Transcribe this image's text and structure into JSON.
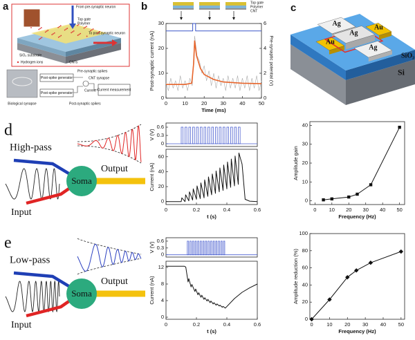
{
  "panel_labels": [
    "a",
    "b",
    "c",
    "d",
    "e"
  ],
  "panel_a": {
    "from": "From pre-synaptic neuron",
    "to": "To post-synaptic neuron",
    "top_gate": "Top gate",
    "polymer": "Polymer",
    "substrate": "SiO₂ substrate",
    "ions": "Hydrogen ions",
    "cnts": "CNTs",
    "bio": "Biological synapse",
    "pre_spikes": "Pre-synaptic spikes",
    "gen1": "Post-spike generator",
    "cnt_synapse": "CNT synapse",
    "current": "Current",
    "gen2": "Post-spike generator",
    "post_spikes": "Post-synaptic spikes",
    "measure": "Current measurement"
  },
  "panel_c": {
    "labels": [
      "Ag",
      "Ag",
      "Au",
      "Au",
      "Ag"
    ],
    "sio2": "SiO₂",
    "si": "Si"
  },
  "diagram_d": {
    "filter": "High-pass",
    "soma": "Soma",
    "input": "Input",
    "output": "Output"
  },
  "diagram_e": {
    "filter": "Low-pass",
    "soma": "Soma",
    "input": "Input",
    "output": "Output"
  },
  "chart_data": [
    {
      "type": "line",
      "xlabel": "Time (ms)",
      "ylabel": "Post-synaptic current (nA)",
      "y2label": "Pre-synaptic potential (V)",
      "xlim": [
        0,
        50
      ],
      "xticks": [
        0,
        10,
        20,
        30,
        40,
        50
      ],
      "ylim": [
        0,
        30
      ],
      "yticks": [
        0,
        10,
        20,
        30
      ],
      "y2lim": [
        0,
        6
      ],
      "y2ticks": [
        0,
        2,
        4,
        6
      ],
      "layer_legend": [
        {
          "label": "Top gate",
          "color": "#d9c034"
        },
        {
          "label": "Polymer",
          "color": "#7fb4d6"
        },
        {
          "label": "CNT",
          "color": "#222222"
        }
      ],
      "series": [
        {
          "color": "#aaaaaa",
          "x": [
            0,
            1.25,
            2.5,
            3.75,
            5,
            6.25,
            7.5,
            8.75,
            10,
            11.25,
            12.5,
            13.75,
            15,
            16.25,
            17.5,
            18.75,
            20,
            21.25,
            22.5,
            23.75,
            25,
            26.25,
            27.5,
            28.75,
            30,
            31.25,
            32.5,
            33.75,
            35,
            36.25,
            37.5,
            38.75,
            40,
            41.25,
            42.5,
            43.75,
            45,
            46.25,
            47.5,
            48.75,
            50
          ],
          "values": [
            6,
            3,
            8,
            4,
            7,
            3,
            9,
            4,
            7,
            3,
            8,
            5,
            25,
            17,
            15,
            10,
            13,
            7,
            11,
            5,
            10,
            4,
            9,
            5,
            8,
            3,
            9,
            4,
            8,
            4,
            9,
            3,
            8,
            4,
            9,
            3,
            8,
            4,
            9,
            3,
            7
          ]
        },
        {
          "color": "#e8642a",
          "x": [
            0,
            10,
            13.5,
            14.5,
            15,
            16,
            18,
            20,
            25,
            30,
            40,
            50
          ],
          "values": [
            5.5,
            5.5,
            6,
            14,
            23,
            17,
            12,
            9.5,
            7.5,
            6.5,
            6,
            5.8
          ]
        },
        {
          "color": "#3a55c8",
          "axis": "y2",
          "x": [
            0,
            14,
            14,
            15.5,
            15.5,
            50
          ],
          "values": [
            5.4,
            5.4,
            6,
            6,
            5.4,
            5.4
          ]
        }
      ]
    },
    {
      "type": "pulse",
      "ylabel": "V (V)",
      "xlim": [
        0,
        0.6
      ],
      "ylim": [
        -0.1,
        0.75
      ],
      "yticks": [
        0,
        0.3,
        0.6
      ],
      "color": "#4a5fd0",
      "pulse_height": 0.6,
      "pulse_width": 0.012,
      "pulse_starts": [
        0.1,
        0.125,
        0.15,
        0.175,
        0.2,
        0.225,
        0.25,
        0.275,
        0.3,
        0.325,
        0.35,
        0.375,
        0.4,
        0.425,
        0.45,
        0.475
      ]
    },
    {
      "type": "line",
      "xlabel": "t (s)",
      "ylabel": "Current (nA)",
      "xlim": [
        0,
        0.6
      ],
      "xticks": [
        0,
        0.2,
        0.4,
        0.6
      ],
      "ylim": [
        -4,
        70
      ],
      "yticks": [
        0,
        20,
        40,
        60
      ],
      "series": [
        {
          "color": "#111111",
          "x": [
            0,
            0.1,
            0.104,
            0.125,
            0.129,
            0.15,
            0.154,
            0.175,
            0.179,
            0.2,
            0.204,
            0.225,
            0.229,
            0.25,
            0.254,
            0.275,
            0.279,
            0.3,
            0.304,
            0.325,
            0.329,
            0.35,
            0.354,
            0.375,
            0.379,
            0.4,
            0.404,
            0.425,
            0.429,
            0.45,
            0.454,
            0.475,
            0.479,
            0.5,
            0.52,
            0.55,
            0.6
          ],
          "values": [
            0,
            0,
            5,
            0,
            9,
            1,
            13,
            2,
            17,
            3,
            21,
            4,
            25,
            5,
            29,
            7,
            33,
            9,
            37,
            11,
            41,
            13,
            45,
            15,
            49,
            17,
            53,
            19,
            57,
            21,
            61,
            23,
            65,
            50,
            3,
            0.5,
            0
          ]
        }
      ]
    },
    {
      "type": "line",
      "xlabel": "Frequency (Hz)",
      "ylabel": "Amplitude gain",
      "xlim": [
        -3,
        53
      ],
      "xticks": [
        0,
        10,
        20,
        30,
        40,
        50
      ],
      "ylim": [
        -2,
        42
      ],
      "yticks": [
        0,
        10,
        20,
        30,
        40
      ],
      "series": [
        {
          "color": "#111111",
          "marker": "square",
          "x": [
            5,
            10,
            20,
            25,
            33,
            50
          ],
          "values": [
            0.5,
            1,
            2,
            3.5,
            8.5,
            39
          ]
        }
      ]
    },
    {
      "type": "pulse",
      "ylabel": "V (V)",
      "xlim": [
        0,
        0.6
      ],
      "ylim": [
        -0.1,
        0.75
      ],
      "yticks": [
        0,
        0.3,
        0.6
      ],
      "color": "#4a5fd0",
      "pulse_height": 0.6,
      "pulse_width": 0.008,
      "pulse_starts": [
        0.14,
        0.157,
        0.174,
        0.191,
        0.208,
        0.225,
        0.242,
        0.259,
        0.276,
        0.293,
        0.31,
        0.327,
        0.344,
        0.361,
        0.378
      ]
    },
    {
      "type": "line",
      "xlabel": "t (s)",
      "ylabel": "Current (nA)",
      "xlim": [
        0,
        0.6
      ],
      "xticks": [
        0,
        0.2,
        0.4,
        0.6
      ],
      "ylim": [
        -0.5,
        13.5
      ],
      "yticks": [
        0,
        4,
        8,
        12
      ],
      "series": [
        {
          "color": "#111111",
          "x": [
            0,
            0.12,
            0.13,
            0.145,
            0.15,
            0.165,
            0.17,
            0.19,
            0.195,
            0.21,
            0.215,
            0.23,
            0.235,
            0.25,
            0.255,
            0.27,
            0.275,
            0.29,
            0.295,
            0.31,
            0.315,
            0.33,
            0.335,
            0.35,
            0.355,
            0.37,
            0.375,
            0.39,
            0.45,
            0.5,
            0.55,
            0.6
          ],
          "values": [
            12.3,
            12.3,
            12.1,
            8.5,
            9.3,
            7.3,
            7.9,
            6.2,
            6.8,
            5.4,
            5.9,
            4.8,
            5.3,
            4.3,
            4.7,
            3.9,
            4.3,
            3.5,
            3.9,
            3.2,
            3.5,
            2.9,
            3.2,
            2.7,
            2.9,
            2.4,
            2.6,
            2.2,
            4.5,
            6,
            7.1,
            8
          ]
        }
      ]
    },
    {
      "type": "line",
      "xlabel": "Frequency (Hz)",
      "ylabel": "Amplitude reduction (%)",
      "xlim": [
        -1,
        52
      ],
      "xticks": [
        0,
        10,
        20,
        30,
        40,
        50
      ],
      "ylim": [
        0,
        100
      ],
      "yticks": [
        0,
        20,
        40,
        60,
        80,
        100
      ],
      "series": [
        {
          "color": "#111111",
          "marker": "diamond",
          "x": [
            0,
            10,
            20,
            25,
            33,
            50
          ],
          "values": [
            0,
            23,
            49,
            57,
            66,
            79
          ]
        }
      ]
    }
  ]
}
